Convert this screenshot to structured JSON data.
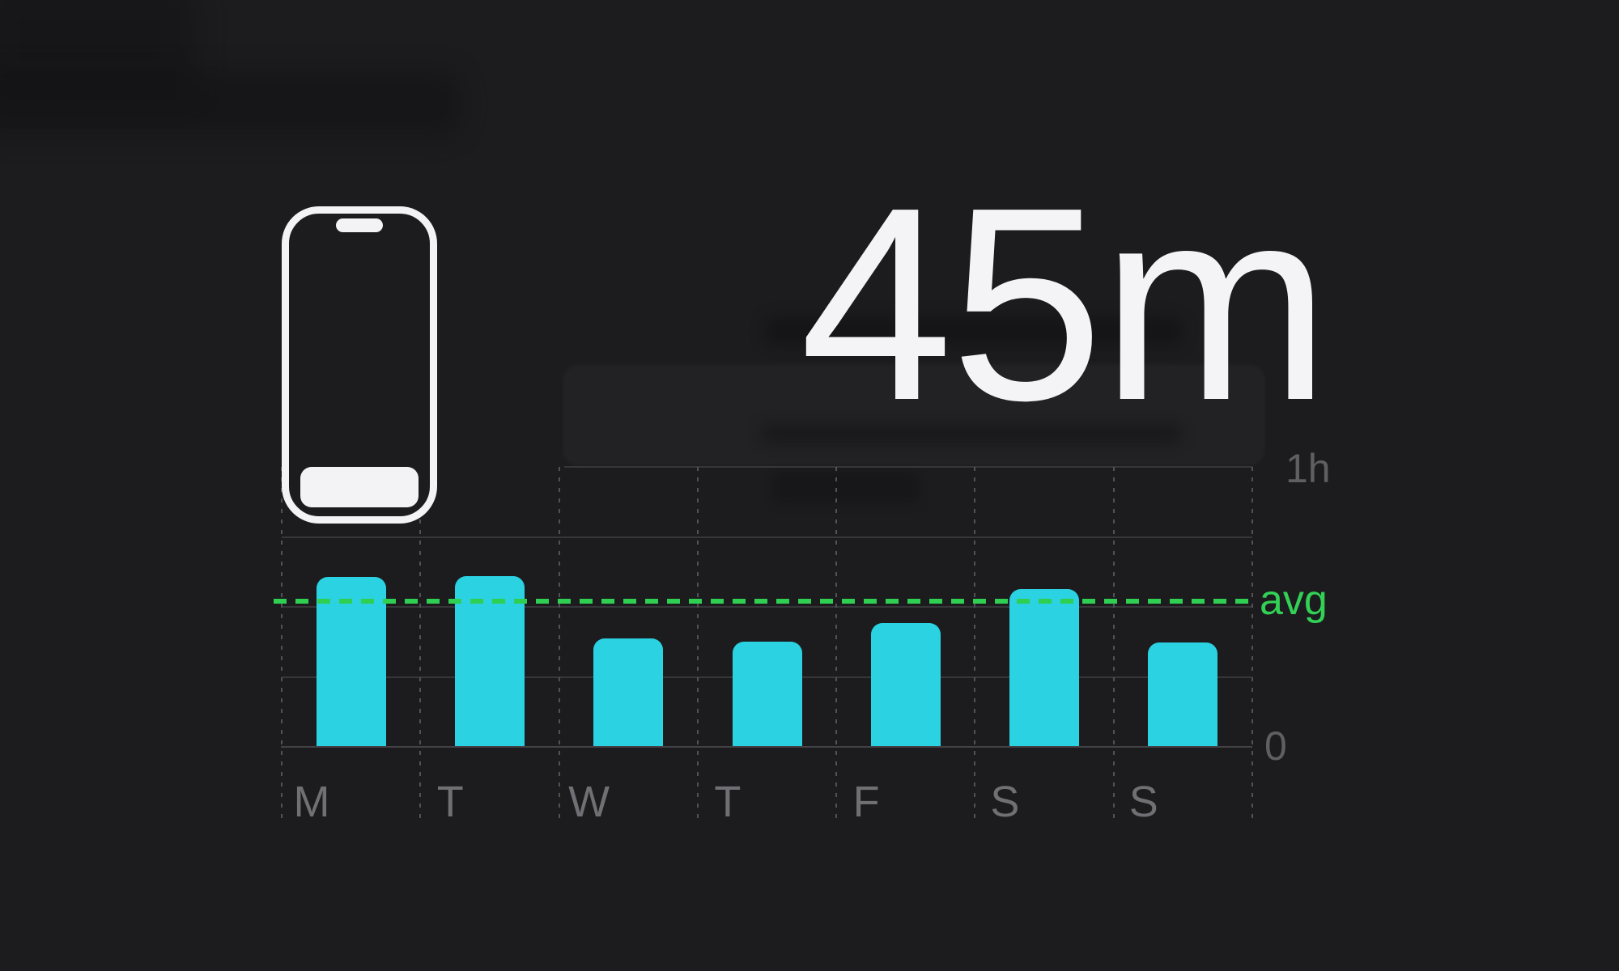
{
  "headline": {
    "usage_value": "45m"
  },
  "icons": {
    "phone": "iphone-outline-icon"
  },
  "chart_data": {
    "type": "bar",
    "categories": [
      "M",
      "T",
      "W",
      "T",
      "F",
      "S",
      "S"
    ],
    "values_minutes": [
      36.4,
      36.6,
      23.2,
      22.6,
      26.5,
      33.8,
      22.4
    ],
    "average_line_minutes": 31.2,
    "ylim_minutes": [
      0,
      60
    ],
    "y_top_label": "1h",
    "y_bottom_label": "0",
    "avg_label": "avg",
    "legend_position": "right",
    "grid": {
      "horizontal": "solid lines every 15 minutes",
      "vertical": "dashed lines at day column boundaries"
    },
    "colors": {
      "background": "#1c1c1e",
      "bar": "#2ad2e2",
      "avg_line": "#2fcf52",
      "avg_label": "#32d156",
      "axis_tick_label": "#5e5e63",
      "day_label": "#6f6f74",
      "grid_line": "#37373a",
      "grid_dash": "#515157",
      "axis_line": "#434347",
      "headline_text": "#f4f4f6",
      "phone_icon": "#f3f3f5"
    }
  }
}
